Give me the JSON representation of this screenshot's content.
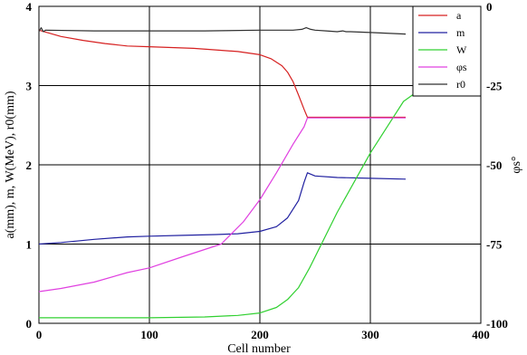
{
  "chart_data": {
    "type": "line",
    "title": "",
    "xlabel": "Cell number",
    "ylabel": "a(mm), m, W(MeV), r0(mm)",
    "y2label": "φs°",
    "xlim": [
      0,
      400
    ],
    "ylim": [
      0,
      4
    ],
    "y2lim": [
      -100,
      0
    ],
    "x_ticks": [
      "0",
      "100",
      "200",
      "300",
      "400"
    ],
    "y_ticks": [
      "0",
      "1",
      "2",
      "3",
      "4"
    ],
    "y2_ticks": [
      "-100",
      "-75",
      "-50",
      "-25",
      "0"
    ],
    "grid": true,
    "legend_position": "top-right",
    "series": [
      {
        "name": "a",
        "axis": "left",
        "color": "#d62020",
        "x": [
          0,
          10,
          20,
          40,
          60,
          80,
          100,
          120,
          140,
          160,
          180,
          200,
          210,
          220,
          225,
          230,
          235,
          240,
          243,
          250,
          270,
          300,
          332
        ],
        "y": [
          3.7,
          3.66,
          3.62,
          3.57,
          3.53,
          3.5,
          3.49,
          3.48,
          3.47,
          3.45,
          3.43,
          3.39,
          3.34,
          3.25,
          3.17,
          3.05,
          2.88,
          2.7,
          2.6,
          2.6,
          2.6,
          2.6,
          2.6
        ]
      },
      {
        "name": "m",
        "axis": "left",
        "color": "#2020a0",
        "x": [
          0,
          20,
          50,
          80,
          100,
          130,
          160,
          180,
          200,
          215,
          225,
          235,
          240,
          243,
          250,
          270,
          300,
          332
        ],
        "y": [
          1.0,
          1.02,
          1.06,
          1.09,
          1.1,
          1.11,
          1.12,
          1.13,
          1.16,
          1.22,
          1.33,
          1.55,
          1.78,
          1.9,
          1.86,
          1.84,
          1.83,
          1.82
        ]
      },
      {
        "name": "W",
        "axis": "left",
        "color": "#30d030",
        "x": [
          0,
          100,
          150,
          180,
          200,
          215,
          225,
          235,
          245,
          255,
          270,
          300,
          330,
          350
        ],
        "y": [
          0.07,
          0.07,
          0.08,
          0.1,
          0.13,
          0.2,
          0.3,
          0.45,
          0.7,
          0.98,
          1.4,
          2.15,
          2.8,
          3.0
        ]
      },
      {
        "name": "φs",
        "axis": "right",
        "color": "#e040e0",
        "x": [
          0,
          20,
          50,
          80,
          100,
          130,
          165,
          185,
          200,
          215,
          230,
          240,
          243,
          300,
          332
        ],
        "y": [
          -90.0,
          -89.0,
          -87.0,
          -84.0,
          -82.5,
          -79.0,
          -75.0,
          -68.0,
          -61.0,
          -52.5,
          -43.5,
          -38.0,
          -35.2,
          -35.2,
          -35.2
        ]
      },
      {
        "name": "r0",
        "axis": "left",
        "color": "#303030",
        "x": [
          0,
          2,
          4,
          6,
          50,
          100,
          150,
          200,
          230,
          238,
          242,
          246,
          250,
          260,
          270,
          275,
          278,
          282,
          300,
          332
        ],
        "y": [
          3.68,
          3.73,
          3.68,
          3.7,
          3.69,
          3.69,
          3.69,
          3.7,
          3.7,
          3.71,
          3.73,
          3.71,
          3.7,
          3.69,
          3.68,
          3.69,
          3.68,
          3.68,
          3.67,
          3.65
        ]
      }
    ]
  }
}
